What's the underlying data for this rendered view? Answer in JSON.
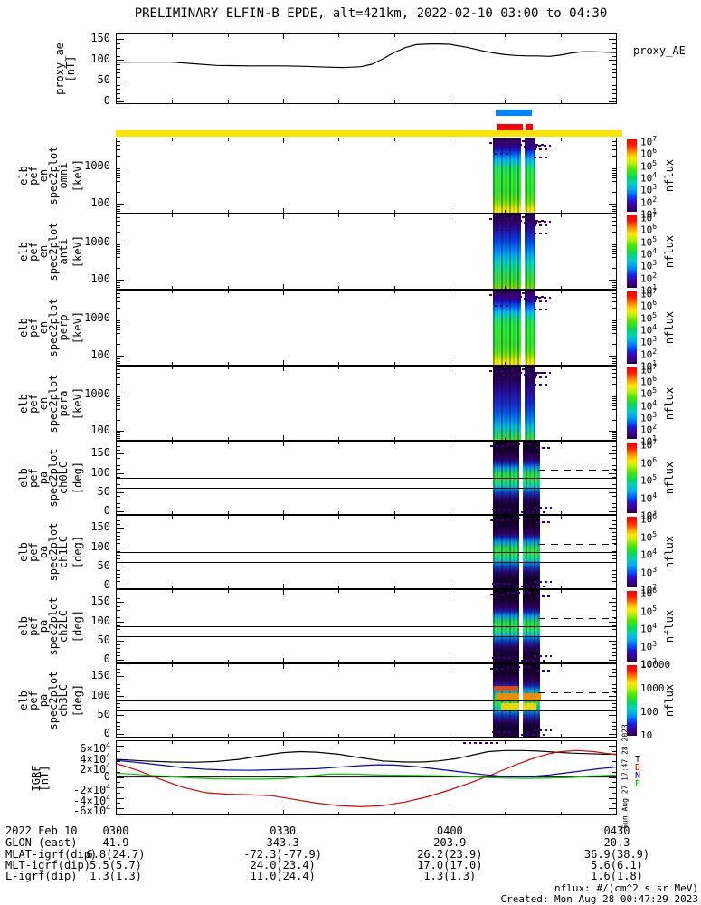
{
  "title": "PRELIMINARY ELFIN-B EPDE, alt=421km, 2022-02-10 03:00 to 04:30",
  "colors": {
    "background": "#ffffff",
    "axis": "#000000",
    "yellow_bar": "#ffe400",
    "blue_bar": "#0084ff",
    "red_bar": "#ff0000",
    "igrf_T": "#000000",
    "igrf_D": "#dd0000",
    "igrf_N": "#0000cc",
    "igrf_E": "#00cc00"
  },
  "status_bars": [
    {
      "name": "fast-blue",
      "color_key": "blue_bar",
      "segments": [
        [
          0.758,
          0.83
        ]
      ]
    },
    {
      "name": "epd-red",
      "color_key": "red_bar",
      "segments": [
        [
          0.76,
          0.812
        ],
        [
          0.818,
          0.832
        ]
      ]
    },
    {
      "name": "position-yellow",
      "color_key": "yellow_bar",
      "segments": [
        [
          0.0,
          1.011
        ]
      ]
    }
  ],
  "time_axis": {
    "date_label": "2022 Feb 10",
    "ticks": [
      "0300",
      "0330",
      "0400",
      "0430"
    ]
  },
  "ephemeris_rows": [
    {
      "label": "GLON (east)",
      "values": [
        "41.9",
        "343.3",
        "203.9",
        "20.3"
      ]
    },
    {
      "label": "MLAT-igrf(dip)",
      "values": [
        "6.8(24.7)",
        "-72.3(-77.9)",
        "26.2(23.9)",
        "36.9(38.9)"
      ]
    },
    {
      "label": "MLT-igrf(dip)",
      "values": [
        "5.5(5.7)",
        "24.0(23.4)",
        "17.0(17.0)",
        "5.6(6.1)"
      ]
    },
    {
      "label": "L-igrf(dip)",
      "values": [
        "1.3(1.3)",
        "11.0(24.4)",
        "1.3(1.3)",
        "1.6(1.8)"
      ]
    }
  ],
  "footer": {
    "units_note": "nflux: #/(cm^2 s sr MeV)",
    "created_note": "Created: Mon Aug 28 00:47:29 2023",
    "side_timestamp": "Sun Aug 27 17:47:28 2023"
  },
  "panels": [
    {
      "id": "proxy_ae",
      "ylabel_lines": [
        "proxy_ae",
        "[nT]"
      ],
      "ytick_labels": [
        "150",
        "100",
        "50",
        "0"
      ],
      "right_label": "proxy_AE"
    },
    {
      "id": "en_omni",
      "ylabel_lines": [
        "elb",
        "pef",
        "en",
        "spec2plot",
        "omni",
        "[keV]"
      ],
      "ytick_labels": [
        "1000",
        "100"
      ],
      "burst_style": "b-bright",
      "colorbar": {
        "label": "nflux",
        "tick_labels": [
          "10^7",
          "10^6",
          "10^5",
          "10^4",
          "10^3",
          "10^2",
          "10^1"
        ]
      }
    },
    {
      "id": "en_anti",
      "ylabel_lines": [
        "elb",
        "pef",
        "en",
        "spec2plot",
        "anti",
        "[keV]"
      ],
      "ytick_labels": [
        "1000",
        "100"
      ],
      "burst_style": "b-medium",
      "colorbar": {
        "label": "nflux",
        "tick_labels": [
          "10^7",
          "10^6",
          "10^5",
          "10^4",
          "10^3",
          "10^2",
          "10^1"
        ]
      }
    },
    {
      "id": "en_perp",
      "ylabel_lines": [
        "elb",
        "pef",
        "en",
        "spec2plot",
        "perp",
        "[keV]"
      ],
      "ytick_labels": [
        "1000",
        "100"
      ],
      "burst_style": "b-bright",
      "colorbar": {
        "label": "nflux",
        "tick_labels": [
          "10^7",
          "10^6",
          "10^5",
          "10^4",
          "10^3",
          "10^2",
          "10^1"
        ]
      }
    },
    {
      "id": "en_para",
      "ylabel_lines": [
        "elb",
        "pef",
        "en",
        "spec2plot",
        "para",
        "[keV]"
      ],
      "ytick_labels": [
        "1000",
        "100"
      ],
      "burst_style": "b-dim",
      "colorbar": {
        "label": "nflux",
        "tick_labels": [
          "10^7",
          "10^6",
          "10^5",
          "10^4",
          "10^3",
          "10^2",
          "10^1"
        ]
      }
    },
    {
      "id": "pa_ch0LC",
      "ylabel_lines": [
        "elb",
        "pef",
        "pa",
        "spec2plot",
        "ch0LC",
        "[deg]"
      ],
      "ytick_labels": [
        "150",
        "100",
        "50",
        "0"
      ],
      "burst_style": "b-pa",
      "colorbar": {
        "label": "nflux",
        "tick_labels": [
          "10^7",
          "10^6",
          "10^5",
          "10^4",
          "10^3"
        ]
      }
    },
    {
      "id": "pa_ch1LC",
      "ylabel_lines": [
        "elb",
        "pef",
        "pa",
        "spec2plot",
        "ch1LC",
        "[deg]"
      ],
      "ytick_labels": [
        "150",
        "100",
        "50",
        "0"
      ],
      "burst_style": "b-pa",
      "colorbar": {
        "label": "nflux",
        "tick_labels": [
          "10^6",
          "10^5",
          "10^4",
          "10^3",
          "10^2"
        ]
      }
    },
    {
      "id": "pa_ch2LC",
      "ylabel_lines": [
        "elb",
        "pef",
        "pa",
        "spec2plot",
        "ch2LC",
        "[deg]"
      ],
      "ytick_labels": [
        "150",
        "100",
        "50",
        "0"
      ],
      "burst_style": "b-pa",
      "colorbar": {
        "label": "nflux",
        "tick_labels": [
          "10^6",
          "10^5",
          "10^4",
          "10^3",
          "10^2"
        ]
      }
    },
    {
      "id": "pa_ch3LC",
      "ylabel_lines": [
        "elb",
        "pef",
        "pa",
        "spec2plot",
        "ch3LC",
        "[deg]"
      ],
      "ytick_labels": [
        "150",
        "100",
        "50",
        "0"
      ],
      "burst_style": "b-pa",
      "hot": true,
      "colorbar": {
        "label": "nflux",
        "tick_labels": [
          "10000",
          "1000",
          "100",
          "10"
        ]
      }
    },
    {
      "id": "igrf",
      "ylabel_lines": [
        "IGRF",
        "[nT]"
      ],
      "ytick_labels": [
        "6×10^4",
        "4×10^4",
        "2×10^4",
        "0",
        "-2×10^4",
        "-4×10^4",
        "-6×10^4"
      ],
      "legend": [
        {
          "label": "T",
          "color_key": "igrf_T"
        },
        {
          "label": "D",
          "color_key": "igrf_D"
        },
        {
          "label": "N",
          "color_key": "igrf_N"
        },
        {
          "label": "E",
          "color_key": "igrf_E"
        }
      ]
    }
  ],
  "chart_data": [
    {
      "id": "proxy_ae",
      "type": "line",
      "ylabel": "proxy_ae [nT]",
      "right_label": "proxy_AE",
      "x_axis": "minutes after 2022-02-10 03:00 UT",
      "xlim": [
        0,
        90
      ],
      "ylim": [
        0,
        160
      ],
      "x": [
        0,
        6,
        10,
        14,
        18,
        24,
        30,
        34,
        38,
        41,
        44,
        46,
        48,
        50,
        52,
        54,
        57,
        60,
        63,
        66,
        68,
        70,
        72,
        74,
        76,
        78,
        80,
        82,
        84,
        86,
        88,
        90
      ],
      "values": [
        95,
        95,
        95,
        91,
        87,
        86,
        86,
        85,
        83,
        82,
        84,
        90,
        103,
        118,
        130,
        137,
        139,
        138,
        131,
        122,
        117,
        113,
        111,
        110,
        110,
        109,
        112,
        117,
        120,
        120,
        119,
        118
      ]
    },
    {
      "id": "en_omni",
      "type": "heatmap",
      "ylabel": "energy [keV]",
      "yscale": "log",
      "ylim": [
        55,
        6000
      ],
      "flux_scale": [
        10.0,
        10000000.0
      ],
      "burst_x_minutes": [
        68,
        75
      ],
      "summary": "omnidirectional electron energy spectrogram; one intense precipitation burst ~04:08-04:15 UT, peak nflux ~1e6 at 100-500 keV, weak above 2 MeV"
    },
    {
      "id": "en_anti",
      "type": "heatmap",
      "ylabel": "energy [keV]",
      "yscale": "log",
      "ylim": [
        55,
        6000
      ],
      "flux_scale": [
        10.0,
        10000000.0
      ],
      "burst_x_minutes": [
        68,
        75
      ],
      "summary": "anti-parallel (upgoing) electron energy spectrogram; burst weaker than omni, mostly blue/cyan flux levels"
    },
    {
      "id": "en_perp",
      "type": "heatmap",
      "ylabel": "energy [keV]",
      "yscale": "log",
      "ylim": [
        55,
        6000
      ],
      "flux_scale": [
        10.0,
        10000000.0
      ],
      "burst_x_minutes": [
        68,
        75
      ],
      "summary": "perpendicular (trapped) electron energy spectrogram; brightest flux of the four directions"
    },
    {
      "id": "en_para",
      "type": "heatmap",
      "ylabel": "energy [keV]",
      "yscale": "log",
      "ylim": [
        55,
        6000
      ],
      "flux_scale": [
        10.0,
        10000000.0
      ],
      "burst_x_minutes": [
        68,
        75
      ],
      "summary": "parallel (precipitating) electron energy spectrogram; dimmest, mostly dark blue/purple"
    },
    {
      "id": "pa_ch0LC",
      "type": "heatmap",
      "ylabel": "pitch angle [deg]",
      "ylim": [
        0,
        180
      ],
      "flux_scale": [
        1000.0,
        10000000.0
      ],
      "lines_deg": {
        "solid": [
          62,
          86
        ],
        "dashed": [
          108
        ]
      },
      "burst_x_minutes": [
        68,
        76
      ],
      "summary": "channel 0 pitch-angle spectrogram with loss-cone (solid) and anti-loss-cone (dashed) boundaries"
    },
    {
      "id": "pa_ch1LC",
      "type": "heatmap",
      "ylabel": "pitch angle [deg]",
      "ylim": [
        0,
        180
      ],
      "flux_scale": [
        100.0,
        1000000.0
      ],
      "lines_deg": {
        "solid": [
          62,
          86
        ],
        "dashed": [
          108
        ]
      },
      "burst_x_minutes": [
        68,
        76
      ],
      "summary": "channel 1 pitch-angle spectrogram"
    },
    {
      "id": "pa_ch2LC",
      "type": "heatmap",
      "ylabel": "pitch angle [deg]",
      "ylim": [
        0,
        180
      ],
      "flux_scale": [
        100.0,
        1000000.0
      ],
      "lines_deg": {
        "solid": [
          62,
          86
        ],
        "dashed": [
          108
        ]
      },
      "burst_x_minutes": [
        68,
        76
      ],
      "summary": "channel 2 pitch-angle spectrogram"
    },
    {
      "id": "pa_ch3LC",
      "type": "heatmap",
      "ylabel": "pitch angle [deg]",
      "ylim": [
        0,
        180
      ],
      "flux_scale": [
        10.0,
        10000.0
      ],
      "lines_deg": {
        "solid": [
          62,
          86
        ],
        "dashed": [
          108
        ]
      },
      "burst_x_minutes": [
        68,
        76
      ],
      "summary": "channel 3 pitch-angle spectrogram with localized orange/yellow flux enhancement near 60-100 deg"
    },
    {
      "id": "igrf",
      "type": "line",
      "ylabel": "IGRF [nT]",
      "xlim": [
        0,
        90
      ],
      "ylim": [
        -65000,
        65000
      ],
      "series": [
        {
          "name": "T",
          "color": "#000000",
          "x": [
            0,
            5,
            10,
            14,
            18,
            22,
            26,
            30,
            33,
            36,
            40,
            44,
            48,
            52,
            55,
            58,
            61,
            64,
            67,
            70,
            73,
            76,
            79,
            82,
            85,
            88,
            90
          ],
          "values": [
            34000,
            31000,
            29000,
            28500,
            30000,
            34000,
            41000,
            47000,
            49000,
            48000,
            44000,
            37000,
            31000,
            29000,
            29000,
            31000,
            35000,
            42000,
            49000,
            51000,
            51000,
            50000,
            48000,
            46000,
            45000,
            44000,
            44000
          ]
        },
        {
          "name": "D",
          "color": "#dd0000",
          "x": [
            0,
            4,
            8,
            12,
            16,
            20,
            24,
            28,
            32,
            36,
            40,
            44,
            48,
            52,
            56,
            60,
            64,
            67,
            70,
            72,
            74,
            76,
            78,
            80,
            83,
            86,
            88,
            90
          ],
          "values": [
            26000,
            12000,
            -5000,
            -20000,
            -30000,
            -33000,
            -34000,
            -36000,
            -43000,
            -50000,
            -55000,
            -57000,
            -55000,
            -48000,
            -38000,
            -25000,
            -10000,
            2000,
            15000,
            24000,
            32000,
            39000,
            45000,
            49000,
            51000,
            49000,
            46000,
            43000
          ]
        },
        {
          "name": "N",
          "color": "#0000cc",
          "x": [
            0,
            4,
            8,
            12,
            16,
            20,
            24,
            28,
            32,
            36,
            40,
            44,
            47,
            50,
            54,
            58,
            62,
            66,
            69,
            72,
            75,
            78,
            81,
            84,
            87,
            90
          ],
          "values": [
            32000,
            28000,
            23000,
            18000,
            15000,
            13500,
            13000,
            14000,
            15000,
            16000,
            19000,
            22000,
            23500,
            23000,
            20000,
            15000,
            10000,
            5000,
            2000,
            1200,
            1500,
            4000,
            8000,
            12000,
            16000,
            19000
          ]
        },
        {
          "name": "E",
          "color": "#00cc00",
          "x": [
            0,
            5,
            10,
            14,
            18,
            22,
            26,
            30,
            34,
            38,
            42,
            46,
            50,
            54,
            58,
            62,
            66,
            70,
            74,
            78,
            82,
            86,
            90
          ],
          "values": [
            7500,
            4000,
            500,
            -2000,
            -3500,
            -4000,
            -4000,
            -3000,
            1000,
            5500,
            6000,
            4500,
            3500,
            3000,
            2500,
            1000,
            -1000,
            -2000,
            -2500,
            -2000,
            -1000,
            2000,
            4000
          ]
        }
      ]
    }
  ]
}
